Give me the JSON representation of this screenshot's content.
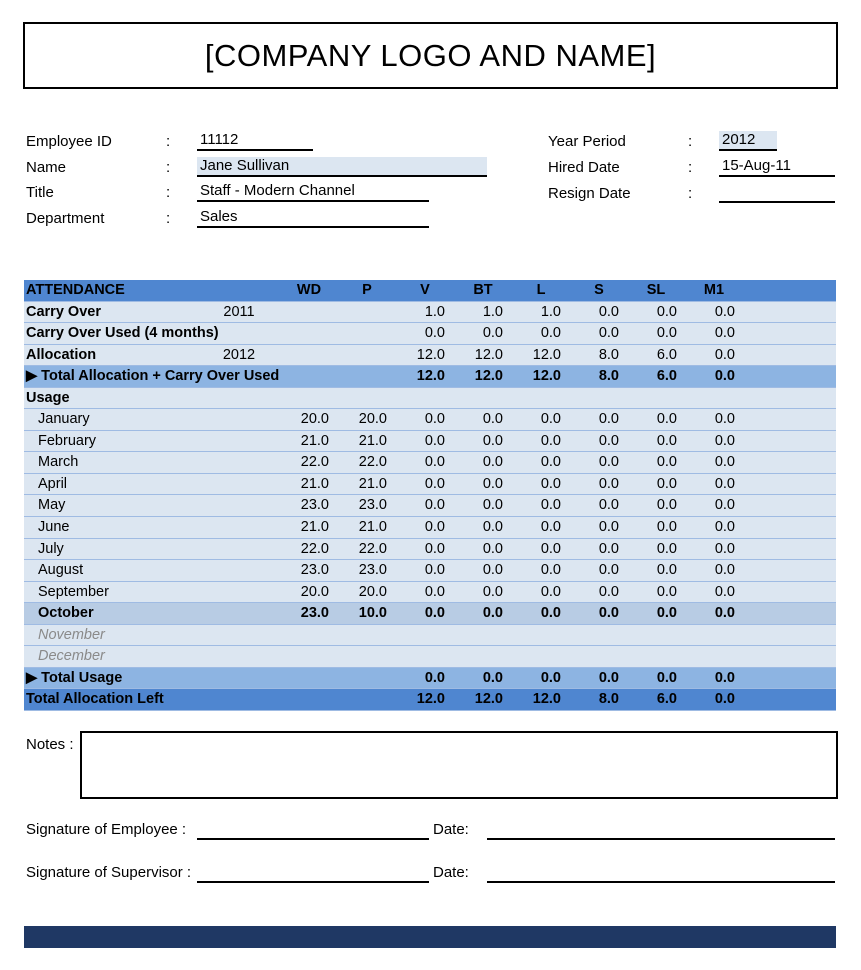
{
  "header": {
    "title": "[COMPANY LOGO AND NAME]"
  },
  "info": {
    "employee_id": {
      "label": "Employee ID",
      "value": "11112"
    },
    "name": {
      "label": "Name",
      "value": "Jane Sullivan"
    },
    "title": {
      "label": "Title",
      "value": "Staff - Modern Channel"
    },
    "department": {
      "label": "Department",
      "value": "Sales"
    },
    "year_period": {
      "label": "Year Period",
      "value": "2012"
    },
    "hired_date": {
      "label": "Hired Date",
      "value": "15-Aug-11"
    },
    "resign_date": {
      "label": "Resign Date",
      "value": ""
    },
    "colon": ":"
  },
  "table": {
    "headers": [
      "ATTENDANCE",
      "WD",
      "P",
      "V",
      "BT",
      "L",
      "S",
      "SL",
      "M1"
    ],
    "rows": [
      {
        "label": "Carry Over",
        "year": "2011",
        "values": [
          "",
          "",
          "1.0",
          "1.0",
          "1.0",
          "0.0",
          "0.0",
          "0.0"
        ],
        "type": "bold"
      },
      {
        "label": "Carry Over Used (4 months)",
        "year": "",
        "values": [
          "",
          "",
          "0.0",
          "0.0",
          "0.0",
          "0.0",
          "0.0",
          "0.0"
        ],
        "type": "bold"
      },
      {
        "label": "Allocation",
        "year": "2012",
        "values": [
          "",
          "",
          "12.0",
          "12.0",
          "12.0",
          "8.0",
          "6.0",
          "0.0"
        ],
        "type": "bold"
      },
      {
        "label": "▶ Total Allocation + Carry Over Used",
        "year": "",
        "values": [
          "",
          "",
          "12.0",
          "12.0",
          "12.0",
          "8.0",
          "6.0",
          "0.0"
        ],
        "type": "total"
      },
      {
        "label": "Usage",
        "year": "",
        "values": [
          "",
          "",
          "",
          "",
          "",
          "",
          "",
          ""
        ],
        "type": "usage"
      },
      {
        "label": "January",
        "year": "",
        "values": [
          "20.0",
          "20.0",
          "0.0",
          "0.0",
          "0.0",
          "0.0",
          "0.0",
          "0.0"
        ],
        "type": "month"
      },
      {
        "label": "February",
        "year": "",
        "values": [
          "21.0",
          "21.0",
          "0.0",
          "0.0",
          "0.0",
          "0.0",
          "0.0",
          "0.0"
        ],
        "type": "month"
      },
      {
        "label": "March",
        "year": "",
        "values": [
          "22.0",
          "22.0",
          "0.0",
          "0.0",
          "0.0",
          "0.0",
          "0.0",
          "0.0"
        ],
        "type": "month"
      },
      {
        "label": "April",
        "year": "",
        "values": [
          "21.0",
          "21.0",
          "0.0",
          "0.0",
          "0.0",
          "0.0",
          "0.0",
          "0.0"
        ],
        "type": "month"
      },
      {
        "label": "May",
        "year": "",
        "values": [
          "23.0",
          "23.0",
          "0.0",
          "0.0",
          "0.0",
          "0.0",
          "0.0",
          "0.0"
        ],
        "type": "month"
      },
      {
        "label": "June",
        "year": "",
        "values": [
          "21.0",
          "21.0",
          "0.0",
          "0.0",
          "0.0",
          "0.0",
          "0.0",
          "0.0"
        ],
        "type": "month"
      },
      {
        "label": "July",
        "year": "",
        "values": [
          "22.0",
          "22.0",
          "0.0",
          "0.0",
          "0.0",
          "0.0",
          "0.0",
          "0.0"
        ],
        "type": "month"
      },
      {
        "label": "August",
        "year": "",
        "values": [
          "23.0",
          "23.0",
          "0.0",
          "0.0",
          "0.0",
          "0.0",
          "0.0",
          "0.0"
        ],
        "type": "month"
      },
      {
        "label": "September",
        "year": "",
        "values": [
          "20.0",
          "20.0",
          "0.0",
          "0.0",
          "0.0",
          "0.0",
          "0.0",
          "0.0"
        ],
        "type": "month"
      },
      {
        "label": "October",
        "year": "",
        "values": [
          "23.0",
          "10.0",
          "0.0",
          "0.0",
          "0.0",
          "0.0",
          "0.0",
          "0.0"
        ],
        "type": "cur"
      },
      {
        "label": "November",
        "year": "",
        "values": [
          "",
          "",
          "",
          "",
          "",
          "",
          "",
          ""
        ],
        "type": "future"
      },
      {
        "label": "December",
        "year": "",
        "values": [
          "",
          "",
          "",
          "",
          "",
          "",
          "",
          ""
        ],
        "type": "future"
      },
      {
        "label": "▶ Total Usage",
        "year": "",
        "values": [
          "",
          "",
          "0.0",
          "0.0",
          "0.0",
          "0.0",
          "0.0",
          "0.0"
        ],
        "type": "total"
      },
      {
        "label": "Total Allocation Left",
        "year": "",
        "values": [
          "",
          "",
          "12.0",
          "12.0",
          "12.0",
          "8.0",
          "6.0",
          "0.0"
        ],
        "type": "left"
      }
    ]
  },
  "notes": {
    "label": "Notes :"
  },
  "signatures": {
    "employee": "Signature of Employee :",
    "supervisor": "Signature of Supervisor :",
    "date": "Date:"
  },
  "colors": {
    "header": "#4f86d0",
    "row": "#dce6f1",
    "total": "#8db4e2",
    "current": "#b8cce4",
    "footer": "#1f3864"
  }
}
